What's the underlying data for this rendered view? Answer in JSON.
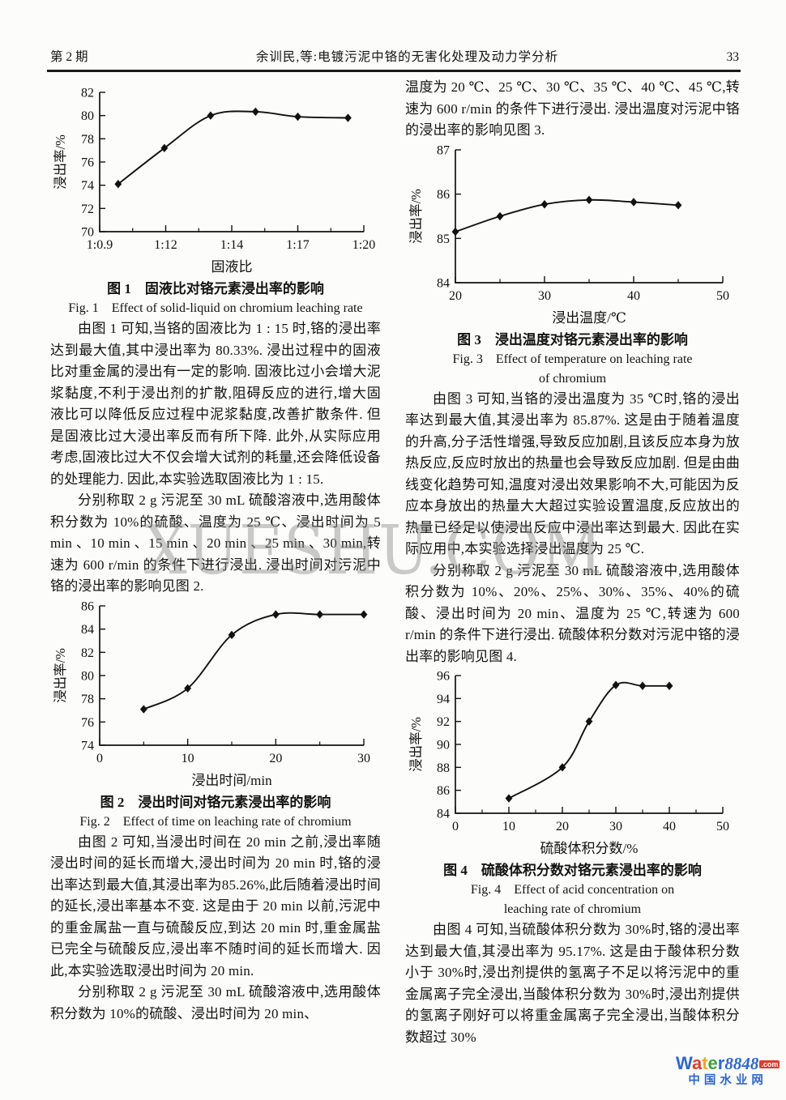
{
  "header": {
    "issue_label": "第 2 期",
    "running_title": "余训民,等:电镀污泥中铬的无害化处理及动力学分析",
    "page_number": "33"
  },
  "watermark": "XUESHU.COM",
  "left": {
    "fig1_caption_cn": "图 1　固液比对铬元素浸出率的影响",
    "fig1_caption_en": "Fig. 1　Effect of solid-liquid on chromium leaching rate",
    "p1": "由图 1 可知,当铬的固液比为 1 : 15 时,铬的浸出率达到最大值,其中浸出率为 80.33%. 浸出过程中的固液比对重金属的浸出有一定的影响. 固液比过小会增大泥浆黏度,不利于浸出剂的扩散,阻碍反应的进行,增大固液比可以降低反应过程中泥浆黏度,改善扩散条件. 但是固液比过大浸出率反而有所下降. 此外,从实际应用考虑,固液比过大不仅会增大试剂的耗量,还会降低设备的处理能力. 因此,本实验选取固液比为 1 : 15.",
    "p2": "分别称取 2 g 污泥至 30 mL 硫酸溶液中,选用酸体积分数为 10%的硫酸、温度为 25 ℃、浸出时间为 5 min 、10 min 、15 min 、20 min 、25 min 、30 min,转速为 600 r/min 的条件下进行浸出. 浸出时间对污泥中铬的浸出率的影响见图 2.",
    "fig2_caption_cn": "图 2　浸出时间对铬元素浸出率的影响",
    "fig2_caption_en": "Fig. 2　Effect of time on leaching rate of chromium",
    "p3": "由图 2 可知,当浸出时间在 20 min 之前,浸出率随浸出时间的延长而增大,浸出时间为 20 min 时,铬的浸出率达到最大值,其浸出率为85.26%,此后随着浸出时间的延长,浸出率基本不变. 这是由于 20 min 以前,污泥中的重金属盐一直与硫酸反应,到达 20 min 时,重金属盐已完全与硫酸反应,浸出率不随时间的延长而增大. 因此,本实验选取浸出时间为 20 min.",
    "p4": "分别称取 2 g 污泥至 30 mL 硫酸溶液中,选用酸体积分数为 10%的硫酸、浸出时间为 20 min、"
  },
  "right": {
    "p0": "温度为 20 ℃、25 ℃、30 ℃、35 ℃、40 ℃、45 ℃,转速为 600 r/min 的条件下进行浸出. 浸出温度对污泥中铬的浸出率的影响见图 3.",
    "fig3_caption_cn": "图 3　浸出温度对铬元素浸出率的影响",
    "fig3_caption_en_line1": "Fig. 3　Effect of temperature on leaching rate",
    "fig3_caption_en_line2": "of chromium",
    "p1": "由图 3 可知,当铬的浸出温度为 35 ℃时,铬的浸出率达到最大值,其浸出率为 85.87%. 这是由于随着温度的升高,分子活性增强,导致反应加剧,且该反应本身为放热反应,反应时放出的热量也会导致反应加剧. 但是由曲线变化趋势可知,温度对浸出效果影响不大,可能因为反应本身放出的热量大大超过实验设置温度,反应放出的热量已经足以使浸出反应中浸出率达到最大. 因此在实际应用中,本实验选择浸出温度为 25 ℃.",
    "p2": "分别称取 2 g 污泥至 30 mL 硫酸溶液中,选用酸体积分数为 10%、20%、25%、30%、35%、40%的硫酸、浸出时间为 20 min、温度为 25 ℃,转速为 600 r/min 的条件下进行浸出. 硫酸体积分数对污泥中铬的浸出率的影响见图 4.",
    "fig4_caption_cn": "图 4　硫酸体积分数对铬元素浸出率的影响",
    "fig4_caption_en_line1": "Fig. 4　Effect of acid concentration on",
    "fig4_caption_en_line2": "leaching rate of chromium",
    "p3": "由图 4 可知,当硫酸体积分数为 30%时,铬的浸出率达到最大值,其浸出率为 95.17%. 这是由于酸体积分数小于 30%时,浸出剂提供的氢离子不足以将污泥中的重金属离子完全浸出,当酸体积分数为 30%时,浸出剂提供的氢离子刚好可以将重金属离子完全浸出,当酸体积分数超过 30%"
  },
  "chart_data": [
    {
      "type": "line",
      "name": "fig1",
      "title": "图 1 固液比对铬元素浸出率的影响",
      "xlabel": "固液比",
      "ylabel": "浸出率/%",
      "ylim": [
        70,
        82
      ],
      "yticks": [
        70,
        72,
        74,
        76,
        78,
        80,
        82
      ],
      "xticks": [
        {
          "f": 0,
          "label": "1:0.9"
        },
        {
          "f": 0.25,
          "label": "1:12"
        },
        {
          "f": 0.5,
          "label": "1:14"
        },
        {
          "f": 0.75,
          "label": "1:17"
        },
        {
          "f": 1,
          "label": "1:20"
        }
      ],
      "xminor_f": [
        0.125,
        0.375,
        0.625,
        0.875
      ],
      "points": [
        {
          "f": 0.07,
          "x": "1:10",
          "y": 74.1
        },
        {
          "f": 0.245,
          "x": "1:12",
          "y": 77.2
        },
        {
          "f": 0.42,
          "x": "1:13.4",
          "y": 80.0
        },
        {
          "f": 0.59,
          "x": "1:15",
          "y": 80.33
        },
        {
          "f": 0.75,
          "x": "1:17",
          "y": 79.9
        },
        {
          "f": 0.94,
          "x": "1:19.5",
          "y": 79.8
        }
      ]
    },
    {
      "type": "line",
      "name": "fig2",
      "title": "图 2 浸出时间对铬元素浸出率的影响",
      "xlabel": "浸出时间/min",
      "ylabel": "浸出率/%",
      "ylim": [
        74,
        86
      ],
      "yticks": [
        74,
        76,
        78,
        80,
        82,
        84,
        86
      ],
      "xticks": [
        {
          "f": 0,
          "label": "0"
        },
        {
          "f": 0.3333,
          "label": "10"
        },
        {
          "f": 0.6667,
          "label": "20"
        },
        {
          "f": 1,
          "label": "30"
        }
      ],
      "xminor_f": [
        0.1667,
        0.5,
        0.8333
      ],
      "points": [
        {
          "f": 0.1667,
          "x": "5",
          "y": 77.1
        },
        {
          "f": 0.3333,
          "x": "10",
          "y": 78.9
        },
        {
          "f": 0.5,
          "x": "15",
          "y": 83.5
        },
        {
          "f": 0.6667,
          "x": "20",
          "y": 85.26
        },
        {
          "f": 0.8333,
          "x": "25",
          "y": 85.26
        },
        {
          "f": 1,
          "x": "30",
          "y": 85.26
        }
      ]
    },
    {
      "type": "line",
      "name": "fig3",
      "title": "图 3 浸出温度对铬元素浸出率的影响",
      "xlabel": "浸出温度/℃",
      "ylabel": "浸出率/%",
      "ylim": [
        84,
        87
      ],
      "yticks": [
        84,
        85,
        86,
        87
      ],
      "xticks": [
        {
          "f": 0,
          "label": "20"
        },
        {
          "f": 0.3333,
          "label": "30"
        },
        {
          "f": 0.6667,
          "label": "40"
        },
        {
          "f": 1,
          "label": "50"
        }
      ],
      "xminor_f": [
        0.1667,
        0.5,
        0.8333
      ],
      "points": [
        {
          "f": 0,
          "x": "20",
          "y": 85.15
        },
        {
          "f": 0.1667,
          "x": "25",
          "y": 85.5
        },
        {
          "f": 0.3333,
          "x": "30",
          "y": 85.77
        },
        {
          "f": 0.5,
          "x": "35",
          "y": 85.87
        },
        {
          "f": 0.6667,
          "x": "40",
          "y": 85.82
        },
        {
          "f": 0.8333,
          "x": "45",
          "y": 85.75
        }
      ]
    },
    {
      "type": "line",
      "name": "fig4",
      "title": "图 4 硫酸体积分数对铬元素浸出率的影响",
      "xlabel": "硫酸体积分数/%",
      "ylabel": "浸出率/%",
      "ylim": [
        84,
        96
      ],
      "yticks": [
        84,
        86,
        88,
        90,
        92,
        94,
        96
      ],
      "xticks": [
        {
          "f": 0,
          "label": "0"
        },
        {
          "f": 0.2,
          "label": "10"
        },
        {
          "f": 0.4,
          "label": "20"
        },
        {
          "f": 0.6,
          "label": "30"
        },
        {
          "f": 0.8,
          "label": "40"
        },
        {
          "f": 1,
          "label": "50"
        }
      ],
      "xminor_f": [
        0.1,
        0.3,
        0.5,
        0.7,
        0.9
      ],
      "points": [
        {
          "f": 0.2,
          "x": "10",
          "y": 85.3
        },
        {
          "f": 0.4,
          "x": "20",
          "y": 88.0
        },
        {
          "f": 0.5,
          "x": "25",
          "y": 92.0
        },
        {
          "f": 0.6,
          "x": "30",
          "y": 95.17
        },
        {
          "f": 0.7,
          "x": "35",
          "y": 95.1
        },
        {
          "f": 0.8,
          "x": "40",
          "y": 95.1
        }
      ]
    }
  ],
  "logo": {
    "brand_letters": [
      {
        "ch": "W",
        "color": "#2b66d9"
      },
      {
        "ch": "a",
        "color": "#e23b2e"
      },
      {
        "ch": "t",
        "color": "#f6a51f"
      },
      {
        "ch": "e",
        "color": "#3ba43b"
      },
      {
        "ch": "r",
        "color": "#2b66d9"
      }
    ],
    "number": "8848",
    "number_color": "#2b66d9",
    "dotcom": ".com",
    "dotcom_bg": "#e23b2e",
    "chinese": "中国水业网",
    "chinese_color": "#2b66d9"
  }
}
